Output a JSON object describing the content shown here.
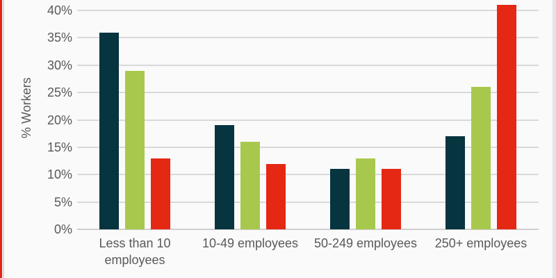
{
  "chart_data": {
    "type": "bar",
    "title": "",
    "ylabel": "% Workers",
    "xlabel": "",
    "ylim": [
      0,
      40
    ],
    "ytick_step": 5,
    "yticks": [
      "0%",
      "5%",
      "10%",
      "15%",
      "20%",
      "25%",
      "30%",
      "35%",
      "40%"
    ],
    "grid": true,
    "legend": "none",
    "categories": [
      "Less than 10 employees",
      "10-49 employees",
      "50-249 employees",
      "250+ employees"
    ],
    "category_label_lines": [
      [
        "Less than 10",
        "employees"
      ],
      [
        "10-49 employees"
      ],
      [
        "50-249 employees"
      ],
      [
        "250+ employees"
      ]
    ],
    "series": [
      {
        "name": "dark-teal-series",
        "color": "#06343f",
        "values": [
          36,
          19,
          11,
          17
        ]
      },
      {
        "name": "green-series",
        "color": "#a8c84d",
        "values": [
          29,
          16,
          13,
          26
        ]
      },
      {
        "name": "red-series",
        "color": "#e42813",
        "values": [
          13,
          12,
          11,
          41
        ]
      }
    ]
  },
  "decorations": {
    "left_edge_color": "#e02415",
    "gridline_color": "#d9d9d9",
    "text_color": "#595959",
    "background_color": "#fafafa"
  }
}
